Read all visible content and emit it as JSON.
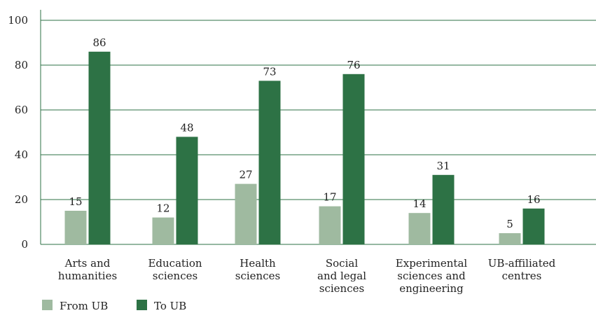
{
  "chart_data": {
    "type": "bar",
    "categories": [
      [
        "Arts and",
        "humanities"
      ],
      [
        "Education",
        "sciences"
      ],
      [
        "Health",
        "sciences"
      ],
      [
        "Social",
        "and legal",
        "sciences"
      ],
      [
        "Experimental",
        "sciences and",
        "engineering"
      ],
      [
        "UB-affiliated",
        "centres"
      ]
    ],
    "series": [
      {
        "name": "From UB",
        "color": "#9fbaa0",
        "values": [
          15,
          12,
          27,
          17,
          14,
          5
        ]
      },
      {
        "name": "To UB",
        "color": "#2d7245",
        "values": [
          86,
          48,
          73,
          76,
          31,
          16
        ]
      }
    ],
    "ylim": [
      0,
      100
    ],
    "yticks": [
      0,
      20,
      40,
      60,
      80,
      100
    ],
    "grid": true,
    "legend_position": "bottom-left",
    "gridline_color": "#2d7245"
  }
}
